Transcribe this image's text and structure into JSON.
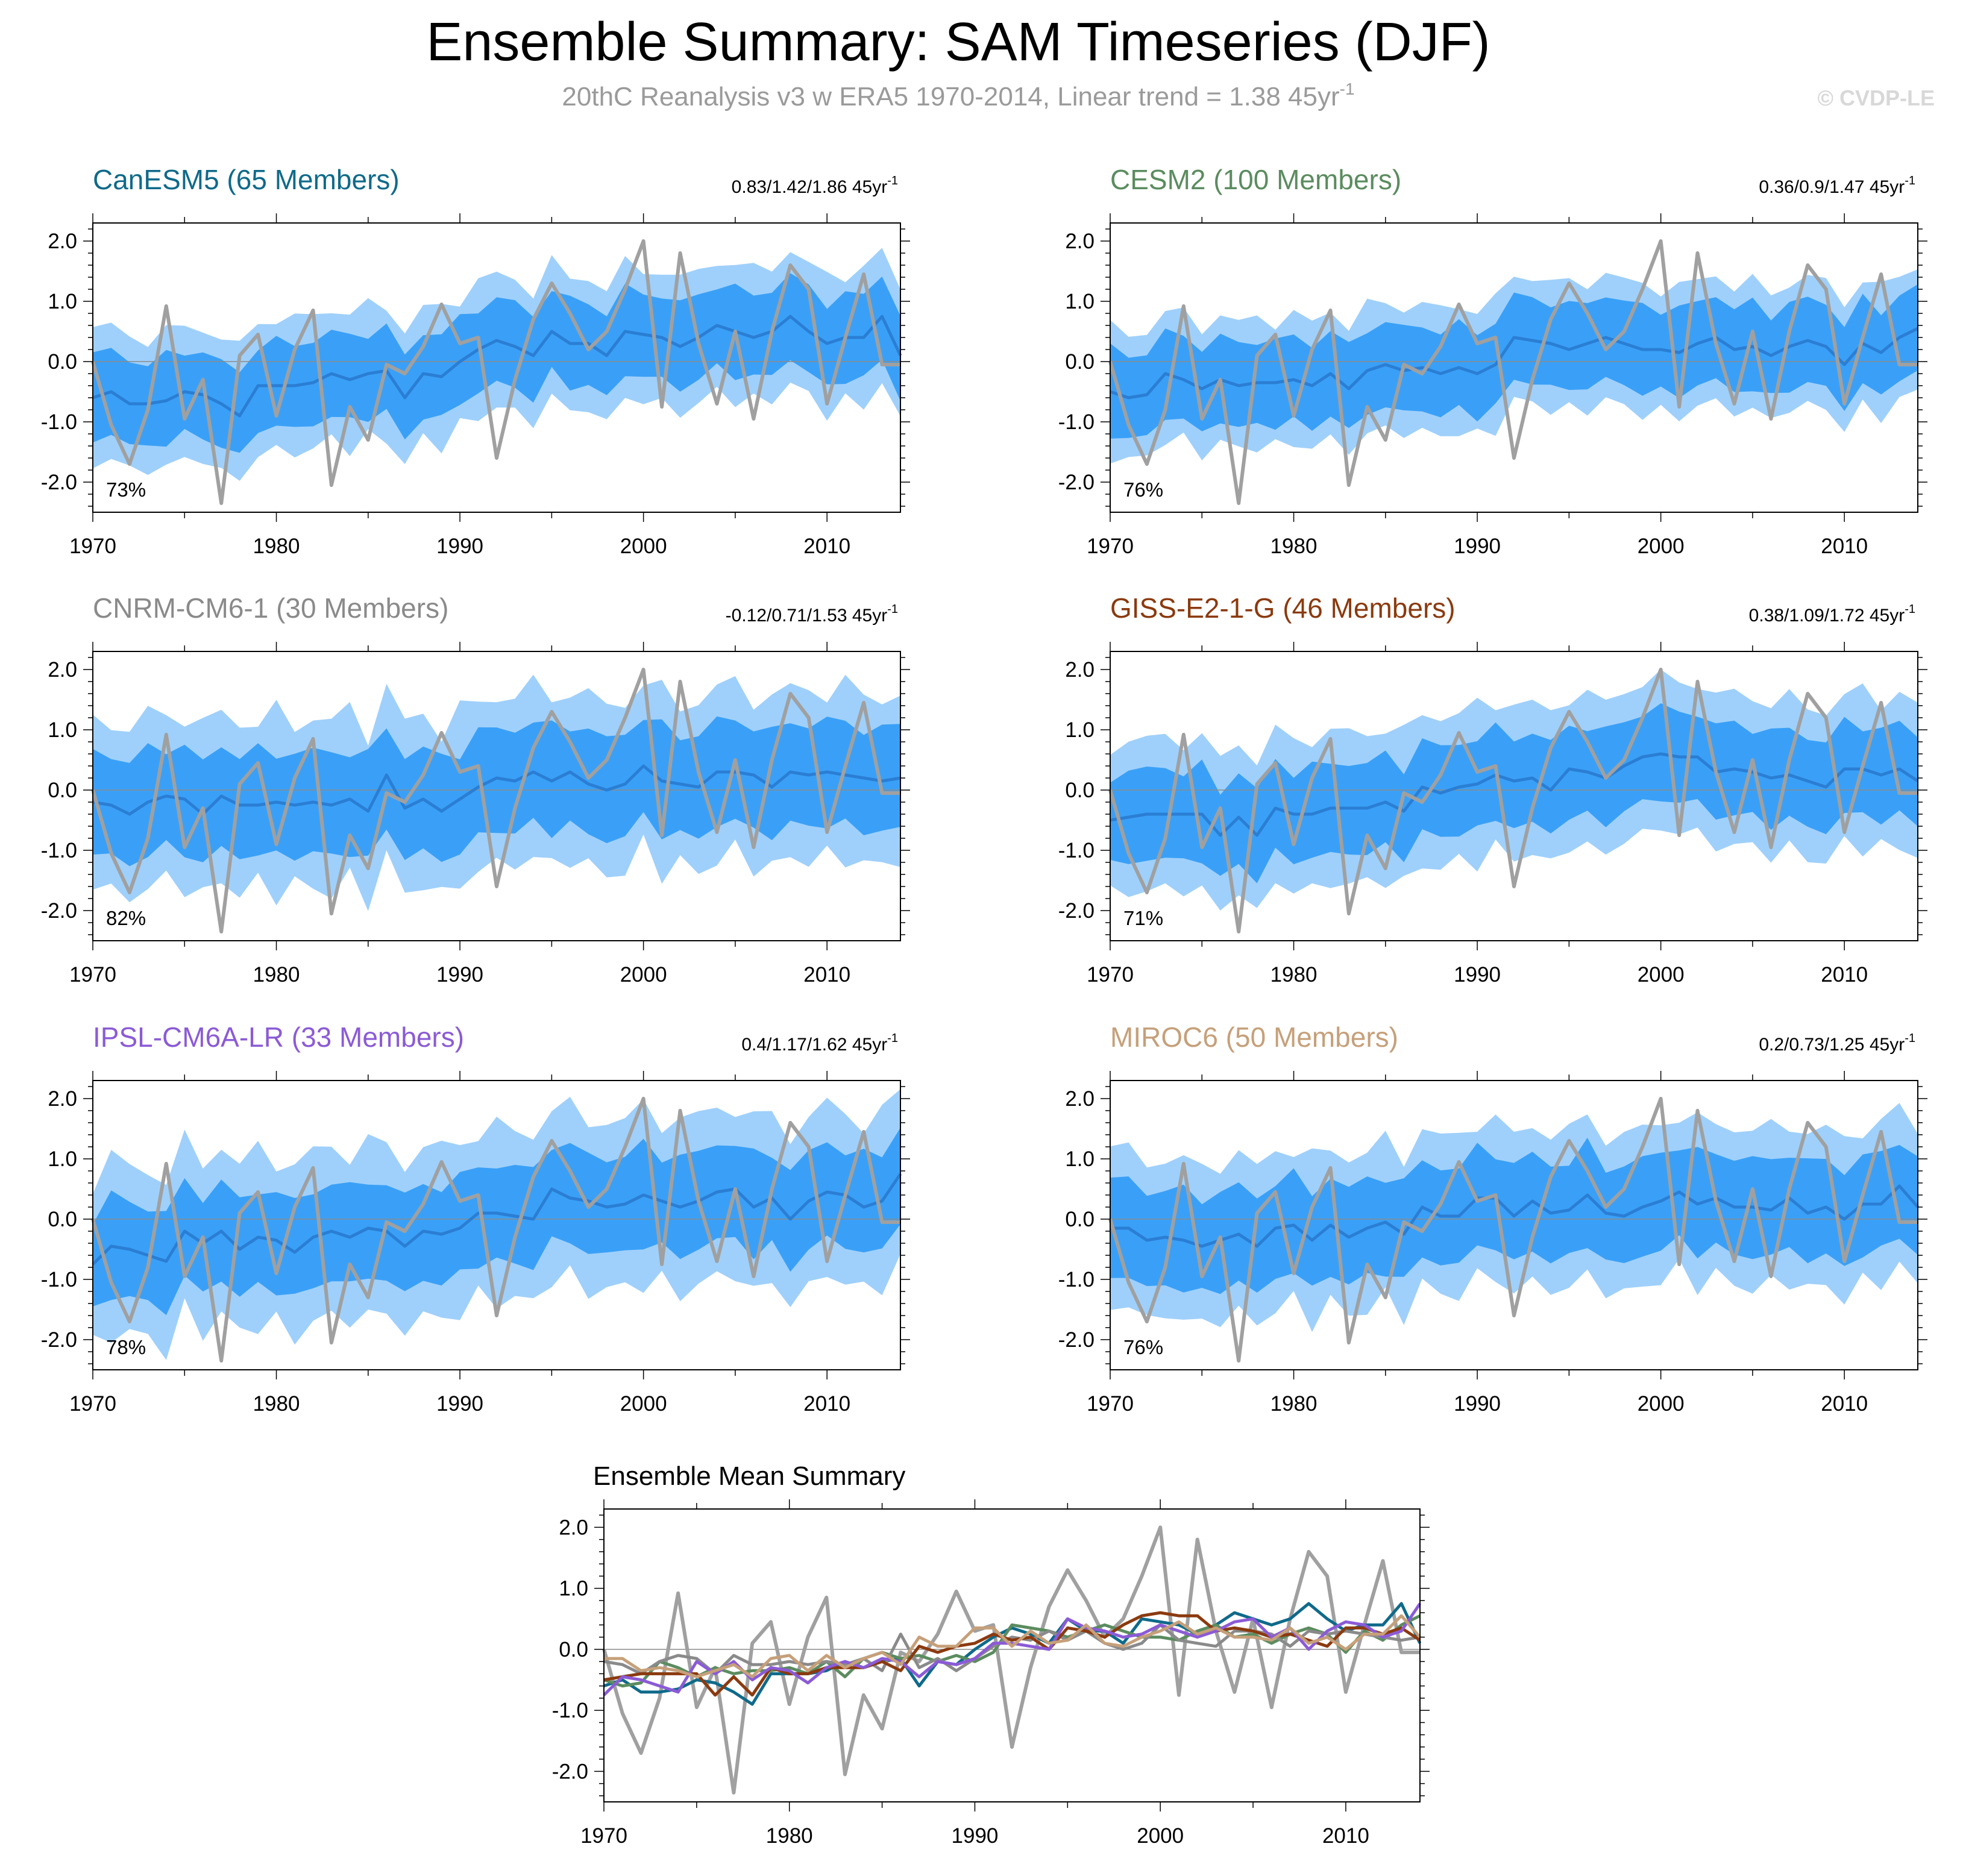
{
  "header": {
    "title": "Ensemble Summary: SAM Timeseries (DJF)",
    "subtitle": "20thC Reanalysis v3 w ERA5 1970-2014, Linear trend = 1.38 45yr",
    "subtitle_sup": "-1",
    "watermark": "© CVDP-LE"
  },
  "colors": {
    "band_outer": "#9fd0fb",
    "band_inner": "#3aa0f7",
    "ensemble_mean": "#2a7ed3",
    "observed": "#a0a0a0",
    "zero_line": "#8a8a8a"
  },
  "chart_data": {
    "type": "line",
    "years": [
      1970,
      1971,
      1972,
      1973,
      1974,
      1975,
      1976,
      1977,
      1978,
      1979,
      1980,
      1981,
      1982,
      1983,
      1984,
      1985,
      1986,
      1987,
      1988,
      1989,
      1990,
      1991,
      1992,
      1993,
      1994,
      1995,
      1996,
      1997,
      1998,
      1999,
      2000,
      2001,
      2002,
      2003,
      2004,
      2005,
      2006,
      2007,
      2008,
      2009,
      2010,
      2011,
      2012,
      2013,
      2014
    ],
    "xlim": [
      1970,
      2014
    ],
    "ylim": [
      -2.5,
      2.3
    ],
    "x_ticks": [
      "1970",
      "1980",
      "1990",
      "2000",
      "2010"
    ],
    "y_ticks": [
      "2.0",
      "1.0",
      "0.0",
      "-1.0",
      "-2.0"
    ],
    "observed": {
      "name": "20thC Reanalysis v3 w ERA5",
      "values": [
        0.0,
        -1.05,
        -1.7,
        -0.8,
        0.92,
        -0.95,
        -0.3,
        -2.35,
        0.1,
        0.45,
        -0.9,
        0.2,
        0.85,
        -2.05,
        -0.75,
        -1.3,
        -0.05,
        -0.2,
        0.25,
        0.95,
        0.3,
        0.4,
        -1.6,
        -0.3,
        0.7,
        1.3,
        0.8,
        0.2,
        0.5,
        1.2,
        2.0,
        -0.75,
        1.8,
        0.3,
        -0.7,
        0.5,
        -0.95,
        0.5,
        1.6,
        1.2,
        -0.7,
        0.4,
        1.45,
        -0.05,
        -0.05
      ]
    },
    "panels": [
      {
        "name": "CanESM5",
        "title": "CanESM5 (65 Members)",
        "title_color": "#0f6a8a",
        "stats": "0.83/1.42/1.86 45yr",
        "stats_sup": "-1",
        "percent": "73%",
        "band_width": [
          1.1,
          0.7
        ],
        "noise": [
          0.12,
          0.09,
          0.07
        ],
        "mean": [
          -0.6,
          -0.5,
          -0.7,
          -0.7,
          -0.65,
          -0.5,
          -0.55,
          -0.7,
          -0.9,
          -0.4,
          -0.4,
          -0.4,
          -0.35,
          -0.2,
          -0.3,
          -0.2,
          -0.15,
          -0.6,
          -0.2,
          -0.25,
          0.0,
          0.2,
          0.35,
          0.25,
          0.1,
          0.5,
          0.3,
          0.3,
          0.1,
          0.5,
          0.45,
          0.4,
          0.25,
          0.4,
          0.6,
          0.5,
          0.4,
          0.5,
          0.75,
          0.5,
          0.3,
          0.4,
          0.4,
          0.75,
          0.1
        ]
      },
      {
        "name": "CESM2",
        "title": "CESM2 (100 Members)",
        "title_color": "#5b8c5f",
        "stats": "0.36/0.9/1.47 45yr",
        "stats_sup": "-1",
        "percent": "76%",
        "band_width": [
          1.05,
          0.7
        ],
        "noise": [
          0.11,
          0.08,
          0.06
        ],
        "mean": [
          -0.5,
          -0.6,
          -0.55,
          -0.2,
          -0.3,
          -0.45,
          -0.3,
          -0.4,
          -0.35,
          -0.35,
          -0.3,
          -0.4,
          -0.2,
          -0.45,
          -0.15,
          -0.05,
          -0.15,
          -0.1,
          -0.2,
          -0.1,
          -0.2,
          -0.05,
          0.4,
          0.35,
          0.3,
          0.2,
          0.3,
          0.4,
          0.3,
          0.2,
          0.2,
          0.15,
          0.3,
          0.4,
          0.2,
          0.25,
          0.1,
          0.25,
          0.35,
          0.25,
          -0.05,
          0.3,
          0.15,
          0.4,
          0.55
        ]
      },
      {
        "name": "CNRM-CM6-1",
        "title": "CNRM-CM6-1 (30 Members)",
        "title_color": "#8a8a8a",
        "stats": "-0.12/0.71/1.53 45yr",
        "stats_sup": "-1",
        "percent": "82%",
        "band_width": [
          1.4,
          0.85
        ],
        "noise": [
          0.2,
          0.12,
          0.08
        ],
        "mean": [
          -0.2,
          -0.25,
          -0.4,
          -0.2,
          -0.1,
          -0.15,
          -0.4,
          -0.1,
          -0.25,
          -0.25,
          -0.2,
          -0.25,
          -0.2,
          -0.25,
          -0.15,
          -0.35,
          0.25,
          -0.3,
          -0.15,
          -0.35,
          -0.15,
          0.05,
          0.2,
          0.15,
          0.3,
          0.15,
          0.3,
          0.1,
          0.0,
          0.1,
          0.4,
          0.15,
          0.1,
          0.05,
          0.3,
          0.3,
          0.25,
          0.05,
          0.3,
          0.25,
          0.3,
          0.25,
          0.2,
          0.15,
          0.2
        ]
      },
      {
        "name": "GISS-E2-1-G",
        "title": "GISS-E2-1-G (46 Members)",
        "title_color": "#8b3a0f",
        "stats": "0.38/1.09/1.72 45yr",
        "stats_sup": "-1",
        "percent": "71%",
        "band_width": [
          1.25,
          0.75
        ],
        "noise": [
          0.13,
          0.1,
          0.07
        ],
        "mean": [
          -0.5,
          -0.45,
          -0.4,
          -0.4,
          -0.4,
          -0.4,
          -0.75,
          -0.45,
          -0.75,
          -0.3,
          -0.4,
          -0.4,
          -0.3,
          -0.3,
          -0.3,
          -0.2,
          -0.35,
          0.05,
          -0.05,
          0.05,
          0.1,
          0.25,
          0.15,
          0.2,
          0.0,
          0.35,
          0.3,
          0.2,
          0.4,
          0.55,
          0.6,
          0.55,
          0.55,
          0.3,
          0.35,
          0.3,
          0.2,
          0.25,
          0.15,
          0.05,
          0.35,
          0.35,
          0.25,
          0.35,
          0.15
        ]
      },
      {
        "name": "IPSL-CM6A-LR",
        "title": "IPSL-CM6A-LR (33 Members)",
        "title_color": "#8b5bd6",
        "stats": "0.4/1.17/1.62 45yr",
        "stats_sup": "-1",
        "percent": "78%",
        "band_width": [
          1.4,
          0.8
        ],
        "noise": [
          0.18,
          0.11,
          0.08
        ],
        "mean": [
          -0.75,
          -0.45,
          -0.5,
          -0.6,
          -0.7,
          -0.2,
          -0.4,
          -0.2,
          -0.5,
          -0.3,
          -0.35,
          -0.55,
          -0.3,
          -0.2,
          -0.3,
          -0.15,
          -0.2,
          -0.45,
          -0.2,
          -0.25,
          -0.15,
          0.1,
          0.1,
          0.05,
          0.0,
          0.5,
          0.35,
          0.3,
          0.2,
          0.25,
          0.4,
          0.3,
          0.2,
          0.3,
          0.45,
          0.5,
          0.2,
          0.35,
          0.0,
          0.3,
          0.45,
          0.4,
          0.2,
          0.3,
          0.75
        ]
      },
      {
        "name": "MIROC6",
        "title": "MIROC6 (50 Members)",
        "title_color": "#c6a07a",
        "stats": "0.2/0.73/1.25 45yr",
        "stats_sup": "-1",
        "percent": "76%",
        "band_width": [
          1.3,
          0.8
        ],
        "noise": [
          0.15,
          0.1,
          0.07
        ],
        "mean": [
          -0.15,
          -0.15,
          -0.35,
          -0.3,
          -0.35,
          -0.45,
          -0.35,
          -0.25,
          -0.45,
          -0.15,
          -0.1,
          -0.35,
          -0.1,
          -0.3,
          -0.15,
          -0.05,
          -0.25,
          0.2,
          0.05,
          0.05,
          0.35,
          0.35,
          0.05,
          0.3,
          0.1,
          0.15,
          0.4,
          0.1,
          0.05,
          0.2,
          0.3,
          0.45,
          0.25,
          0.35,
          0.2,
          0.2,
          0.15,
          0.35,
          0.1,
          0.2,
          0.0,
          0.25,
          0.25,
          0.55,
          0.2
        ]
      }
    ],
    "summary": {
      "title": "Ensemble Mean Summary",
      "ylim": [
        -2.5,
        2.3
      ]
    }
  }
}
